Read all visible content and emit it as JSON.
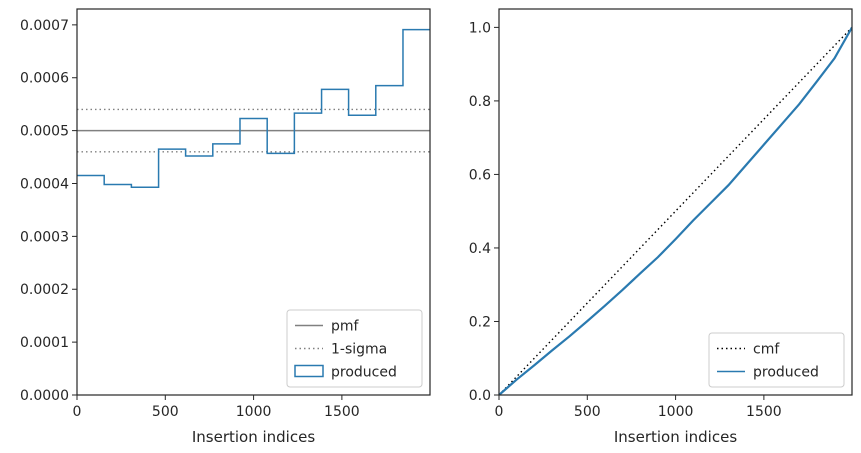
{
  "chart_data": [
    {
      "type": "line",
      "subtype": "histogram-step",
      "xlabel": "Insertion indices",
      "ylabel": "",
      "xlim": [
        0,
        1999
      ],
      "ylim": [
        0,
        0.00073
      ],
      "xticks": [
        0,
        500,
        1000,
        1500
      ],
      "xtick_labels": [
        "0",
        "500",
        "1000",
        "1500"
      ],
      "yticks": [
        0,
        0.0001,
        0.0002,
        0.0003,
        0.0004,
        0.0005,
        0.0006,
        0.0007
      ],
      "ytick_labels": [
        "0.0000",
        "0.0001",
        "0.0002",
        "0.0003",
        "0.0004",
        "0.0005",
        "0.0006",
        "0.0007"
      ],
      "grid": false,
      "legend_position": "lower right",
      "series": [
        {
          "name": "pmf",
          "style": "solid",
          "color": "#808080",
          "y": 0.0005
        },
        {
          "name": "1-sigma",
          "style": "dotted",
          "color": "#808080",
          "y_lower": 0.00046,
          "y_upper": 0.00054
        },
        {
          "name": "produced",
          "style": "step",
          "color": "#2a7ab0",
          "bin_edges": [
            0,
            154,
            308,
            462,
            615,
            769,
            923,
            1077,
            1231,
            1385,
            1538,
            1692,
            1846,
            1999
          ],
          "values": [
            0.000415,
            0.000398,
            0.000393,
            0.000465,
            0.000452,
            0.000475,
            0.000523,
            0.000457,
            0.000533,
            0.000578,
            0.000529,
            0.000585,
            0.000691
          ]
        }
      ]
    },
    {
      "type": "line",
      "xlabel": "Insertion indices",
      "ylabel": "",
      "xlim": [
        0,
        1999
      ],
      "ylim": [
        0,
        1.05
      ],
      "xticks": [
        0,
        500,
        1000,
        1500
      ],
      "xtick_labels": [
        "0",
        "500",
        "1000",
        "1500"
      ],
      "yticks": [
        0,
        0.2,
        0.4,
        0.6,
        0.8,
        1.0
      ],
      "ytick_labels": [
        "0.0",
        "0.2",
        "0.4",
        "0.6",
        "0.8",
        "1.0"
      ],
      "grid": false,
      "legend_position": "lower right",
      "series": [
        {
          "name": "cmf",
          "style": "dotted",
          "color": "#000000",
          "x": [
            0,
            1999
          ],
          "y": [
            0,
            1.0
          ]
        },
        {
          "name": "produced",
          "style": "solid",
          "color": "#2a7ab0",
          "x": [
            0,
            100,
            200,
            300,
            400,
            500,
            600,
            700,
            800,
            900,
            1000,
            1100,
            1200,
            1300,
            1400,
            1500,
            1600,
            1700,
            1800,
            1900,
            1999
          ],
          "y": [
            0,
            0.042,
            0.081,
            0.121,
            0.16,
            0.201,
            0.243,
            0.286,
            0.331,
            0.375,
            0.424,
            0.475,
            0.523,
            0.571,
            0.626,
            0.681,
            0.736,
            0.791,
            0.853,
            0.916,
            1.0
          ]
        }
      ]
    }
  ]
}
